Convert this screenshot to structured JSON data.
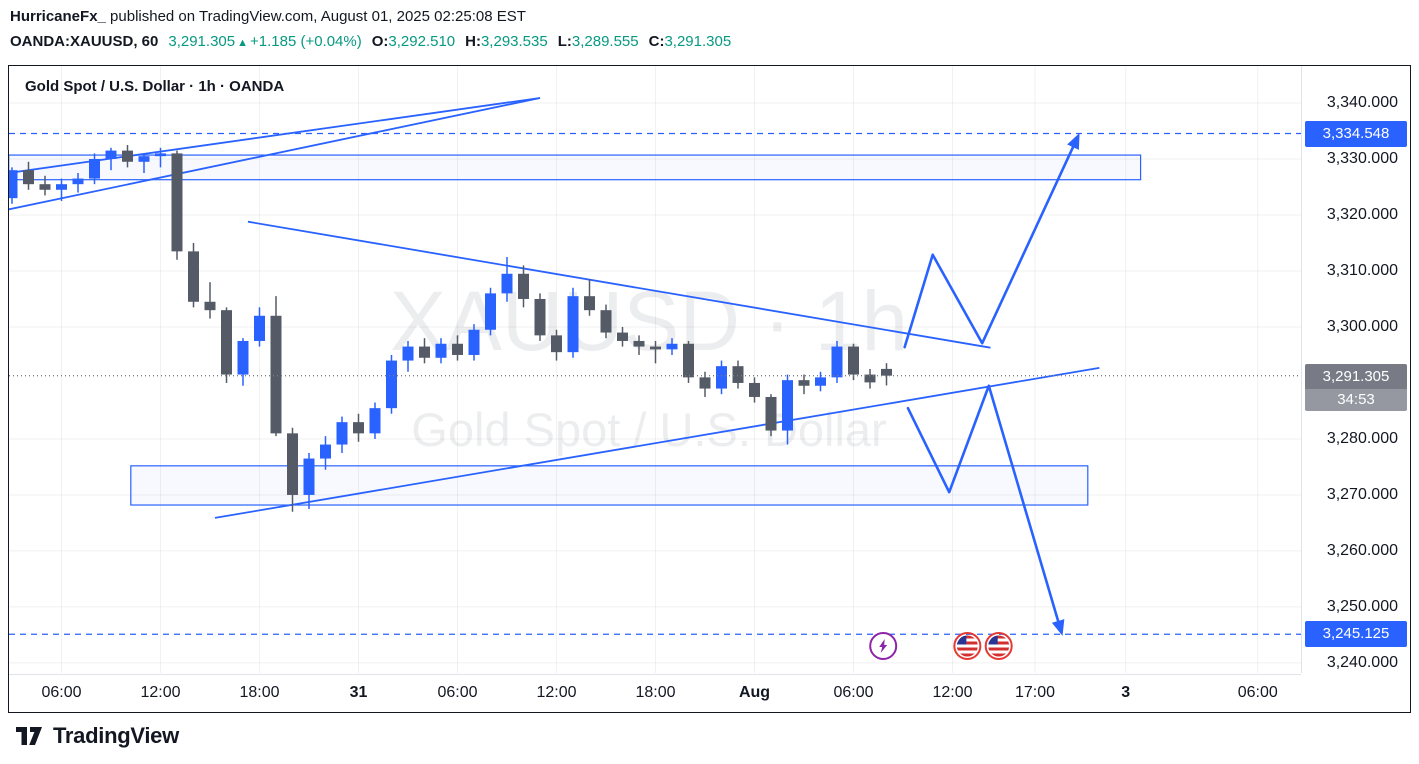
{
  "header": {
    "author": "HurricaneFx_",
    "published": " published on TradingView.com, August 01, 2025 02:25:08 EST"
  },
  "symbol_bar": {
    "symbol": "OANDA:XAUUSD, 60",
    "last_price": "3,291.305",
    "direction_icon": "▲",
    "change": "+1.185 (+0.04%)",
    "open_label": "O:",
    "open": "3,292.510",
    "high_label": "H:",
    "high": "3,293.535",
    "low_label": "L:",
    "low": "3,289.555",
    "close_label": "C:",
    "close": "3,291.305"
  },
  "chart": {
    "title": "Gold Spot / U.S. Dollar · 1h · OANDA",
    "watermark_title": "XAUUSD · 1h",
    "watermark_subtitle": "Gold Spot / U.S. Dollar"
  },
  "footer": {
    "brand": "TradingView"
  },
  "colors": {
    "up": "#2962ff",
    "down": "#555b66",
    "drawing": "#2962ff",
    "alert_badge": "#2962ff",
    "neutral_badge": "#787b86",
    "countdown_badge": "#9598a1",
    "text": "#131722",
    "green": "#089981",
    "grid": "rgba(19,23,34,0.06)",
    "watermark": "rgba(19,23,34,0.08)",
    "event_purple": "#8e24aa",
    "event_red": "#e53935",
    "flag_navy": "#283593",
    "flag_red": "#d32f2f"
  },
  "chart_data": {
    "type": "candlestick",
    "symbol": "OANDA:XAUUSD",
    "interval": "1h",
    "ylim": [
      3238.2,
      3346.607
    ],
    "grid": true,
    "price_ticks": [
      {
        "price": 3340,
        "label": "3,340.000"
      },
      {
        "price": 3330,
        "label": "3,330.000"
      },
      {
        "price": 3320,
        "label": "3,320.000"
      },
      {
        "price": 3310,
        "label": "3,310.000"
      },
      {
        "price": 3300,
        "label": "3,300.000"
      },
      {
        "price": 3280,
        "label": "3,280.000"
      },
      {
        "price": 3270,
        "label": "3,270.000"
      },
      {
        "price": 3260,
        "label": "3,260.000"
      },
      {
        "price": 3250,
        "label": "3,250.000"
      },
      {
        "price": 3240,
        "label": "3,240.000"
      }
    ],
    "time_ticks": [
      {
        "label": "06:00",
        "index": 3,
        "major": false
      },
      {
        "label": "12:00",
        "index": 9,
        "major": false
      },
      {
        "label": "18:00",
        "index": 15,
        "major": false
      },
      {
        "label": "31",
        "index": 21,
        "major": true
      },
      {
        "label": "06:00",
        "index": 27,
        "major": false
      },
      {
        "label": "12:00",
        "index": 33,
        "major": false
      },
      {
        "label": "18:00",
        "index": 39,
        "major": false
      },
      {
        "label": "Aug",
        "index": 45,
        "major": true
      },
      {
        "label": "06:00",
        "index": 51,
        "major": false
      },
      {
        "label": "12:00",
        "index": 57,
        "major": false
      },
      {
        "label": "17:00",
        "index": 62,
        "major": false
      },
      {
        "label": "3",
        "index": 67.5,
        "major": true
      },
      {
        "label": "06:00",
        "index": 75.5,
        "major": false
      }
    ],
    "candles": [
      [
        3323,
        3328.5,
        3322,
        3328
      ],
      [
        3328,
        3329.5,
        3324.5,
        3325.5
      ],
      [
        3325.5,
        3327,
        3323.5,
        3324.5
      ],
      [
        3324.5,
        3326.5,
        3322.5,
        3325.5
      ],
      [
        3325.5,
        3327.5,
        3324,
        3326.5
      ],
      [
        3326.5,
        3331,
        3325.5,
        3330
      ],
      [
        3330,
        3332,
        3328,
        3331.5
      ],
      [
        3331.5,
        3332.5,
        3328.5,
        3329.5
      ],
      [
        3329.5,
        3331,
        3327.5,
        3330.5
      ],
      [
        3330.5,
        3332,
        3328.5,
        3331
      ],
      [
        3331,
        3331.5,
        3312,
        3313.5
      ],
      [
        3313.5,
        3315,
        3303.5,
        3304.5
      ],
      [
        3304.5,
        3308,
        3301.5,
        3303
      ],
      [
        3303,
        3303.5,
        3290,
        3291.5
      ],
      [
        3291.5,
        3298,
        3289.5,
        3297.5
      ],
      [
        3297.5,
        3303.5,
        3296.5,
        3302
      ],
      [
        3302,
        3305.5,
        3280.5,
        3281
      ],
      [
        3281,
        3282,
        3267,
        3270
      ],
      [
        3270,
        3277.5,
        3267.5,
        3276.5
      ],
      [
        3276.5,
        3280.5,
        3274.5,
        3279
      ],
      [
        3279,
        3284,
        3277.5,
        3283
      ],
      [
        3283,
        3284.5,
        3279.5,
        3281
      ],
      [
        3281,
        3286.5,
        3280,
        3285.5
      ],
      [
        3285.5,
        3295,
        3284.5,
        3294
      ],
      [
        3294,
        3297.5,
        3292,
        3296.5
      ],
      [
        3296.5,
        3298,
        3293.5,
        3294.5
      ],
      [
        3294.5,
        3298,
        3293.5,
        3297
      ],
      [
        3297,
        3298.5,
        3294,
        3295
      ],
      [
        3295,
        3300.5,
        3294,
        3299.5
      ],
      [
        3299.5,
        3307,
        3298.5,
        3306
      ],
      [
        3306,
        3312.5,
        3304.5,
        3309.5
      ],
      [
        3309.5,
        3311,
        3303.5,
        3305
      ],
      [
        3305,
        3306,
        3297.5,
        3298.5
      ],
      [
        3298.5,
        3299.5,
        3294,
        3295.5
      ],
      [
        3295.5,
        3307,
        3294.5,
        3305.5
      ],
      [
        3305.5,
        3308.5,
        3302,
        3303
      ],
      [
        3303,
        3304,
        3298,
        3299
      ],
      [
        3299,
        3300,
        3296.5,
        3297.5
      ],
      [
        3297.5,
        3298.5,
        3295,
        3296.5
      ],
      [
        3296.5,
        3297.5,
        3293.5,
        3296
      ],
      [
        3296,
        3298,
        3295,
        3297
      ],
      [
        3297,
        3297.5,
        3290,
        3291
      ],
      [
        3291,
        3292,
        3287.5,
        3289
      ],
      [
        3289,
        3294,
        3288,
        3293
      ],
      [
        3293,
        3294,
        3289,
        3290
      ],
      [
        3290,
        3291,
        3286.5,
        3287.5
      ],
      [
        3287.5,
        3288,
        3280.5,
        3281.5
      ],
      [
        3281.5,
        3291.5,
        3279,
        3290.5
      ],
      [
        3290.5,
        3291.5,
        3288,
        3289.5
      ],
      [
        3289.5,
        3292,
        3288.5,
        3291
      ],
      [
        3291,
        3297.5,
        3290,
        3296.5
      ],
      [
        3296.5,
        3297,
        3290.5,
        3291.5
      ],
      [
        3291.5,
        3292.5,
        3289,
        3290.1
      ],
      [
        3292.51,
        3293.535,
        3289.555,
        3291.305
      ]
    ],
    "levels": [
      {
        "price": 3334.548,
        "label": "3,334.548",
        "style": "dashed"
      },
      {
        "price": 3245.125,
        "label": "3,245.125",
        "style": "dashed"
      }
    ],
    "last_price_marker": {
      "price": 3291.305,
      "label": "3,291.305",
      "countdown": "34:53",
      "style": "dotted"
    },
    "zones": [
      {
        "name": "supply-zone",
        "i": [
          -0.2,
          68.4
        ],
        "p": [
          3330.7,
          3326.3
        ]
      },
      {
        "name": "demand-zone",
        "i": [
          7.2,
          65.2
        ],
        "p": [
          3275.2,
          3268.2
        ]
      }
    ],
    "trendlines": [
      {
        "name": "rising-wedge-lower-trendline",
        "i": [
          -0.2,
          32
        ],
        "p": [
          3321,
          3340.9
        ]
      },
      {
        "name": "rising-wedge-upper-trendline",
        "i": [
          -0.2,
          32
        ],
        "p": [
          3327.5,
          3340.9
        ]
      },
      {
        "name": "triangle-upper-trendline",
        "i": [
          14.3,
          59.3
        ],
        "p": [
          3318.8,
          3296.3
        ]
      },
      {
        "name": "triangle-lower-trendline",
        "i": [
          12.3,
          65.9
        ],
        "p": [
          3265.9,
          3292.7
        ]
      }
    ],
    "projections": [
      {
        "name": "bullish-projection-arrow",
        "points": [
          [
            54.1,
            3296.4
          ],
          [
            55.8,
            3312.9
          ],
          [
            58.8,
            3297.1
          ],
          [
            64.6,
            3334.0
          ]
        ]
      },
      {
        "name": "bearish-projection-arrow",
        "points": [
          [
            54.3,
            3285.5
          ],
          [
            56.8,
            3270.5
          ],
          [
            59.2,
            3289.5
          ],
          [
            63.6,
            3245.5
          ]
        ]
      }
    ],
    "events": [
      {
        "icon": "lightning-icon",
        "index": 52.8
      },
      {
        "icon": "us-flag-icon",
        "index": 57.9
      },
      {
        "icon": "us-flag-icon",
        "index": 59.8
      }
    ]
  }
}
